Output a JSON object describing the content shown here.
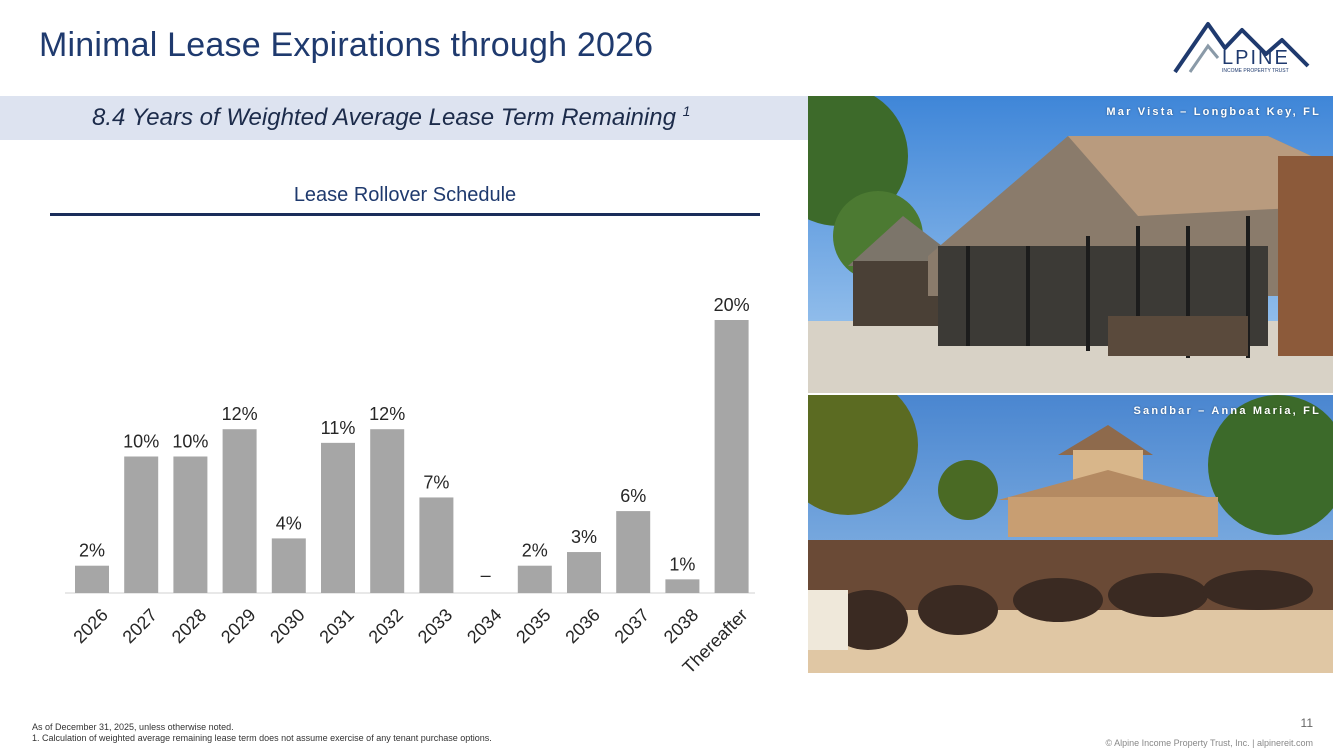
{
  "header": {
    "title": "Minimal Lease Expirations through 2026",
    "logo_text": "LPINE",
    "logo_subtext": "INCOME PROPERTY TRUST"
  },
  "banner": {
    "text": "8.4 Years of Weighted Average Lease Term Remaining",
    "footnote_marker": "1"
  },
  "chart_data": {
    "type": "bar",
    "title": "Lease Rollover Schedule",
    "categories": [
      "2026",
      "2027",
      "2028",
      "2029",
      "2030",
      "2031",
      "2032",
      "2033",
      "2034",
      "2035",
      "2036",
      "2037",
      "2038",
      "Thereafter"
    ],
    "values": [
      2,
      10,
      10,
      12,
      4,
      11,
      12,
      7,
      0,
      2,
      3,
      6,
      1,
      20
    ],
    "value_labels": [
      "2%",
      "10%",
      "10%",
      "12%",
      "4%",
      "11%",
      "12%",
      "7%",
      "–",
      "2%",
      "3%",
      "6%",
      "1%",
      "20%"
    ],
    "ylim": [
      0,
      20
    ],
    "grid": false,
    "legend": "none",
    "bar_color": "#a6a6a6"
  },
  "photos": [
    {
      "caption": "Mar Vista – Longboat Key, FL"
    },
    {
      "caption": "Sandbar – Anna Maria, FL"
    }
  ],
  "notes": {
    "line1": "As of December 31, 2025, unless otherwise noted.",
    "line2": "1.    Calculation of weighted average remaining lease term does not assume exercise of any tenant purchase options."
  },
  "page_number": "11",
  "footer": "© Alpine Income Property Trust, Inc.  |  alpinereit.com"
}
